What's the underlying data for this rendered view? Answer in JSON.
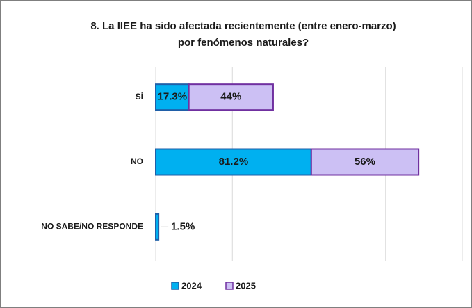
{
  "chart_data": {
    "type": "bar",
    "orientation": "horizontal",
    "stacked": true,
    "title": [
      "8. La IIEE ha sido afectada recientemente (entre enero-marzo)",
      "por fenómenos naturales?"
    ],
    "categories": [
      "SÍ",
      "NO",
      "NO SABE/NO RESPONDE"
    ],
    "series": [
      {
        "name": "2024",
        "color": "#00b0f0",
        "values": [
          17.3,
          81.2,
          1.5
        ],
        "value_labels": [
          "17.3%",
          "81.2%",
          "1.5%"
        ]
      },
      {
        "name": "2025",
        "color": "#ccc0f4",
        "values": [
          44,
          56,
          null
        ],
        "value_labels": [
          "44%",
          "56%",
          null
        ]
      }
    ],
    "xlim": [
      0,
      160
    ],
    "xticks": [
      0,
      40,
      80,
      120,
      160
    ],
    "grid": true,
    "legend": "bottom"
  }
}
